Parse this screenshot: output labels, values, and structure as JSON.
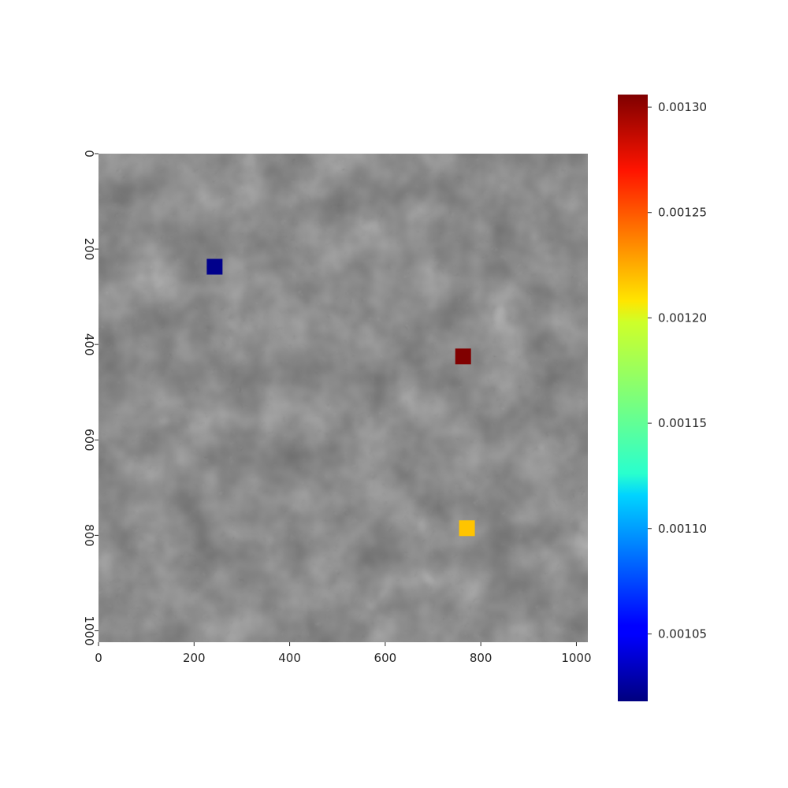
{
  "chart_data": {
    "type": "heatmap",
    "title": "",
    "xlabel": "",
    "ylabel": "",
    "xlim": [
      0,
      1024
    ],
    "ylim": [
      1024,
      0
    ],
    "x_ticks": [
      {
        "value": 0,
        "label": "0"
      },
      {
        "value": 200,
        "label": "200"
      },
      {
        "value": 400,
        "label": "400"
      },
      {
        "value": 600,
        "label": "600"
      },
      {
        "value": 800,
        "label": "800"
      },
      {
        "value": 1000,
        "label": "1000"
      }
    ],
    "y_ticks": [
      {
        "value": 0,
        "label": "0"
      },
      {
        "value": 200,
        "label": "200"
      },
      {
        "value": 400,
        "label": "400"
      },
      {
        "value": 600,
        "label": "600"
      },
      {
        "value": 800,
        "label": "800"
      },
      {
        "value": 1000,
        "label": "1000"
      }
    ],
    "background": "grayscale micrograph",
    "colormap": "jet",
    "colorbar": {
      "min": 0.001018,
      "max": 0.001306,
      "ticks": [
        {
          "value": 0.00105,
          "label": "0.00105"
        },
        {
          "value": 0.0011,
          "label": "0.00110"
        },
        {
          "value": 0.00115,
          "label": "0.00115"
        },
        {
          "value": 0.0012,
          "label": "0.00120"
        },
        {
          "value": 0.00125,
          "label": "0.00125"
        },
        {
          "value": 0.0013,
          "label": "0.00130"
        }
      ],
      "placement": "right"
    },
    "markers": [
      {
        "x": 243,
        "y": 237,
        "value": 0.001018,
        "color": "#00008b"
      },
      {
        "x": 763,
        "y": 425,
        "value": 0.001306,
        "color": "#800000"
      },
      {
        "x": 771,
        "y": 785,
        "value": 0.00123,
        "color": "#ffc400"
      }
    ]
  }
}
